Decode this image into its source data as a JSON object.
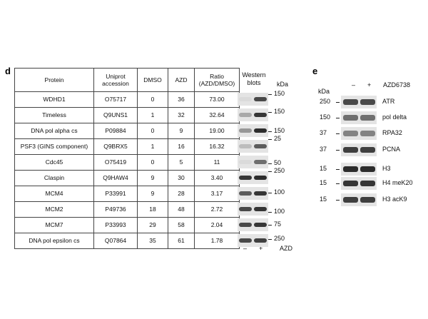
{
  "panel_d": {
    "label": "d",
    "table": {
      "header": [
        "Protein",
        "Uniprot accession",
        "DMSO",
        "AZD",
        "Ratio (AZD/DMSO)"
      ],
      "rows": [
        [
          "WDHD1",
          "O75717",
          "0",
          "36",
          "73.00"
        ],
        [
          "Timeless",
          "Q9UNS1",
          "1",
          "32",
          "32.64"
        ],
        [
          "DNA pol alpha cs",
          "P09884",
          "0",
          "9",
          "19.00"
        ],
        [
          "PSF3 (GINS component)",
          "Q9BRX5",
          "1",
          "16",
          "16.32"
        ],
        [
          "Cdc45",
          "O75419",
          "0",
          "5",
          "11"
        ],
        [
          "Claspin",
          "Q9HAW4",
          "9",
          "30",
          "3.40"
        ],
        [
          "MCM4",
          "P33991",
          "9",
          "28",
          "3.17"
        ],
        [
          "MCM2",
          "P49736",
          "18",
          "48",
          "2.72"
        ],
        [
          "MCM7",
          "P33993",
          "29",
          "58",
          "2.04"
        ],
        [
          "DNA pol epsilon cs",
          "Q07864",
          "35",
          "61",
          "1.78"
        ]
      ]
    },
    "blots": {
      "title": "Western blots",
      "unit": "kDa",
      "markers": [
        "150",
        "150",
        "150",
        "25",
        "50",
        "250",
        "100",
        "100",
        "75",
        "250"
      ],
      "lanes": [
        "–",
        "+"
      ],
      "treatment": "AZD"
    }
  },
  "panel_e": {
    "label": "e",
    "unit": "kDa",
    "lanes": [
      "–",
      "+"
    ],
    "treatment": "AZD6738",
    "blots": [
      {
        "name": "ATR",
        "marker": "250"
      },
      {
        "name": "pol delta",
        "marker": "150"
      },
      {
        "name": "RPA32",
        "marker": "37"
      },
      {
        "name": "PCNA",
        "marker": "37"
      },
      {
        "name": "H3",
        "marker": "15"
      },
      {
        "name": "H4 meK20",
        "marker": "15"
      },
      {
        "name": "H3 acK9",
        "marker": "15"
      }
    ]
  }
}
